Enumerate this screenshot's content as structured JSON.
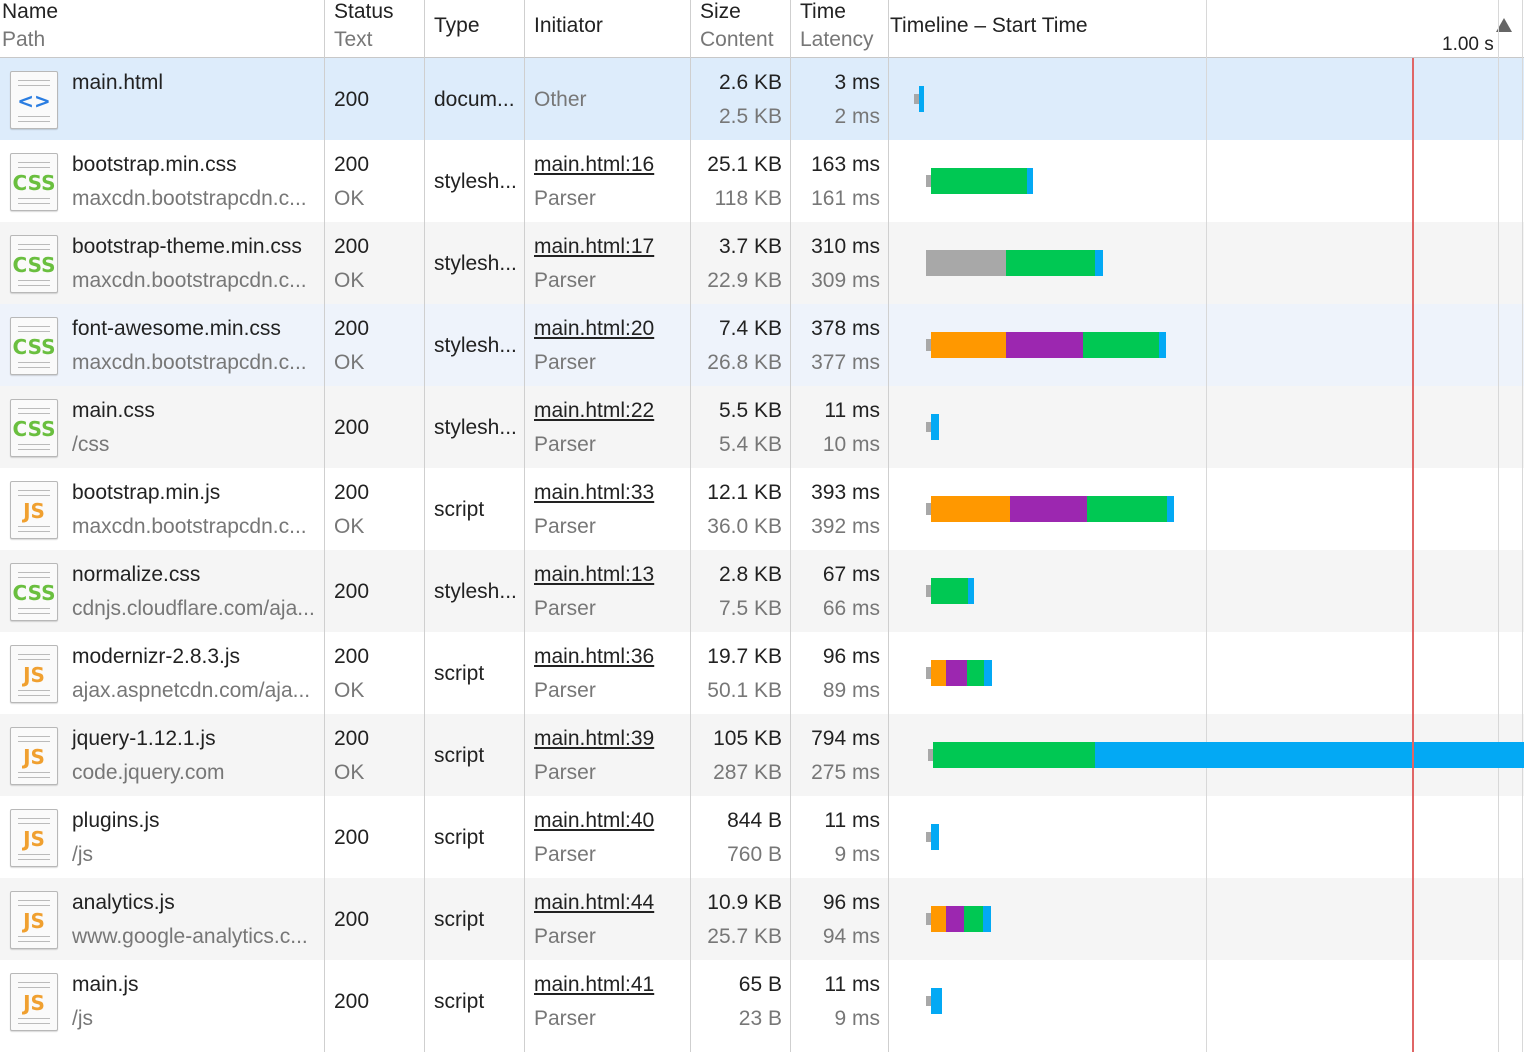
{
  "header": {
    "name": "Name",
    "path": "Path",
    "status": "Status",
    "status_text": "Text",
    "type": "Type",
    "initiator": "Initiator",
    "size": "Size",
    "content": "Content",
    "time": "Time",
    "latency": "Latency",
    "timeline": "Timeline – Start Time",
    "scale": "1.00 s"
  },
  "colors": {
    "waiting": "#a8a8a8",
    "dns": "#ff9800",
    "ssl": "#9c27b0",
    "receiving": "#00c853",
    "download": "#03a9f4",
    "marker": "#e06666",
    "selected": "#ddecfb"
  },
  "rows": [
    {
      "name": "main.html",
      "path": "",
      "status": "200",
      "status_text": "",
      "type": "docum...",
      "initiator": "Other",
      "initiator_sub": "",
      "size": "2.6 KB",
      "content": "2.5 KB",
      "time": "3 ms",
      "latency": "2 ms",
      "icon": "html-file-icon",
      "glyph": "<>",
      "glyph_color": "#2a7de1",
      "timing": {
        "start_ms": 0,
        "waiting_ms": 2,
        "dns_ms": 0,
        "ssl_ms": 0,
        "receiving_ms": 0,
        "download_ms": 3
      }
    },
    {
      "name": "bootstrap.min.css",
      "path": "maxcdn.bootstrapcdn.c...",
      "status": "200",
      "status_text": "OK",
      "type": "stylesh...",
      "initiator": "main.html:16",
      "initiator_sub": "Parser",
      "size": "25.1 KB",
      "content": "118 KB",
      "time": "163 ms",
      "latency": "161 ms",
      "icon": "css-file-icon",
      "glyph": "CSS",
      "glyph_color": "#6abf3f",
      "timing": {
        "start_ms": 20,
        "waiting_ms": 10,
        "dns_ms": 0,
        "ssl_ms": 0,
        "receiving_ms": 192,
        "download_ms": 8
      }
    },
    {
      "name": "bootstrap-theme.min.css",
      "path": "maxcdn.bootstrapcdn.c...",
      "status": "200",
      "status_text": "OK",
      "type": "stylesh...",
      "initiator": "main.html:17",
      "initiator_sub": "Parser",
      "size": "3.7 KB",
      "content": "22.9 KB",
      "time": "310 ms",
      "latency": "309 ms",
      "icon": "css-file-icon",
      "glyph": "CSS",
      "glyph_color": "#6abf3f",
      "timing": {
        "start_ms": 20,
        "waiting_ms": 199,
        "dns_ms": 0,
        "ssl_ms": 0,
        "receiving_ms": 179,
        "download_ms": 10
      }
    },
    {
      "name": "font-awesome.min.css",
      "path": "maxcdn.bootstrapcdn.c...",
      "status": "200",
      "status_text": "OK",
      "type": "stylesh...",
      "initiator": "main.html:20",
      "initiator_sub": "Parser",
      "size": "7.4 KB",
      "content": "26.8 KB",
      "time": "378 ms",
      "latency": "377 ms",
      "icon": "css-file-icon",
      "glyph": "CSS",
      "glyph_color": "#6abf3f",
      "timing": {
        "start_ms": 20,
        "waiting_ms": 6,
        "dns_ms": 149,
        "ssl_ms": 155,
        "receiving_ms": 151,
        "download_ms": 10
      }
    },
    {
      "name": "main.css",
      "path": "/css",
      "status": "200",
      "status_text": "",
      "type": "stylesh...",
      "initiator": "main.html:22",
      "initiator_sub": "Parser",
      "size": "5.5 KB",
      "content": "5.4 KB",
      "time": "11 ms",
      "latency": "10 ms",
      "icon": "css-file-icon",
      "glyph": "CSS",
      "glyph_color": "#6abf3f",
      "timing": {
        "start_ms": 20,
        "waiting_ms": 8,
        "dns_ms": 0,
        "ssl_ms": 0,
        "receiving_ms": 0,
        "download_ms": 10
      }
    },
    {
      "name": "bootstrap.min.js",
      "path": "maxcdn.bootstrapcdn.c...",
      "status": "200",
      "status_text": "OK",
      "type": "script",
      "initiator": "main.html:33",
      "initiator_sub": "Parser",
      "size": "12.1 KB",
      "content": "36.0 KB",
      "time": "393 ms",
      "latency": "392 ms",
      "icon": "js-file-icon",
      "glyph": "JS",
      "glyph_color": "#f0a030",
      "timing": {
        "start_ms": 20,
        "waiting_ms": 6,
        "dns_ms": 157,
        "ssl_ms": 155,
        "receiving_ms": 159,
        "download_ms": 10
      }
    },
    {
      "name": "normalize.css",
      "path": "cdnjs.cloudflare.com/aja...",
      "status": "200",
      "status_text": "",
      "type": "stylesh...",
      "initiator": "main.html:13",
      "initiator_sub": "Parser",
      "size": "2.8 KB",
      "content": "7.5 KB",
      "time": "67 ms",
      "latency": "66 ms",
      "icon": "css-file-icon",
      "glyph": "CSS",
      "glyph_color": "#6abf3f",
      "timing": {
        "start_ms": 20,
        "waiting_ms": 10,
        "dns_ms": 0,
        "ssl_ms": 0,
        "receiving_ms": 74,
        "download_ms": 8
      }
    },
    {
      "name": "modernizr-2.8.3.js",
      "path": "ajax.aspnetcdn.com/aja...",
      "status": "200",
      "status_text": "OK",
      "type": "script",
      "initiator": "main.html:36",
      "initiator_sub": "Parser",
      "size": "19.7 KB",
      "content": "50.1 KB",
      "time": "96 ms",
      "latency": "89 ms",
      "icon": "js-file-icon",
      "glyph": "JS",
      "glyph_color": "#f0a030",
      "timing": {
        "start_ms": 20,
        "waiting_ms": 6,
        "dns_ms": 30,
        "ssl_ms": 41,
        "receiving_ms": 35,
        "download_ms": 10
      }
    },
    {
      "name": "jquery-1.12.1.js",
      "path": "code.jquery.com",
      "status": "200",
      "status_text": "OK",
      "type": "script",
      "initiator": "main.html:39",
      "initiator_sub": "Parser",
      "size": "105 KB",
      "content": "287 KB",
      "time": "794 ms",
      "latency": "275 ms",
      "icon": "js-file-icon",
      "glyph": "JS",
      "glyph_color": "#f0a030",
      "timing": {
        "start_ms": 24,
        "waiting_ms": 6,
        "dns_ms": 0,
        "ssl_ms": 0,
        "receiving_ms": 324,
        "download_ms": 626
      }
    },
    {
      "name": "plugins.js",
      "path": "/js",
      "status": "200",
      "status_text": "",
      "type": "script",
      "initiator": "main.html:40",
      "initiator_sub": "Parser",
      "size": "844 B",
      "content": "760 B",
      "time": "11 ms",
      "latency": "9 ms",
      "icon": "js-file-icon",
      "glyph": "JS",
      "glyph_color": "#f0a030",
      "timing": {
        "start_ms": 20,
        "waiting_ms": 8,
        "dns_ms": 0,
        "ssl_ms": 0,
        "receiving_ms": 0,
        "download_ms": 10
      }
    },
    {
      "name": "analytics.js",
      "path": "www.google-analytics.c...",
      "status": "200",
      "status_text": "",
      "type": "script",
      "initiator": "main.html:44",
      "initiator_sub": "Parser",
      "size": "10.9 KB",
      "content": "25.7 KB",
      "time": "96 ms",
      "latency": "94 ms",
      "icon": "js-file-icon",
      "glyph": "JS",
      "glyph_color": "#f0a030",
      "timing": {
        "start_ms": 20,
        "waiting_ms": 6,
        "dns_ms": 30,
        "ssl_ms": 35,
        "receiving_ms": 39,
        "download_ms": 10
      }
    },
    {
      "name": "main.js",
      "path": "/js",
      "status": "200",
      "status_text": "",
      "type": "script",
      "initiator": "main.html:41",
      "initiator_sub": "Parser",
      "size": "65 B",
      "content": "23 B",
      "time": "11 ms",
      "latency": "9 ms",
      "icon": "js-file-icon",
      "glyph": "JS",
      "glyph_color": "#f0a030",
      "timing": {
        "start_ms": 20,
        "waiting_ms": 8,
        "dns_ms": 0,
        "ssl_ms": 0,
        "receiving_ms": 0,
        "download_ms": 14
      }
    }
  ],
  "timeline": {
    "scale_ms": 1000,
    "marker_ms": 980
  }
}
